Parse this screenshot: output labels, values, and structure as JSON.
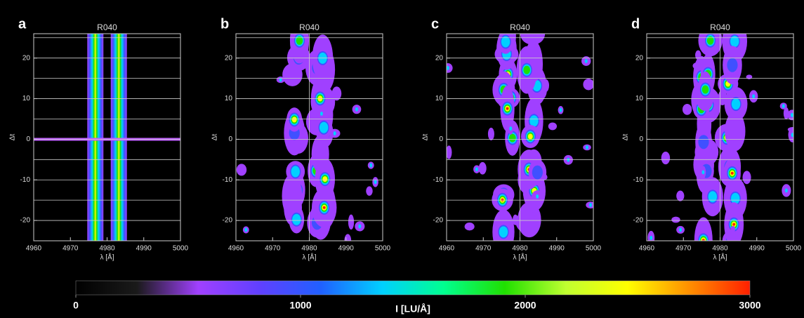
{
  "chart_data": [
    {
      "type": "contour",
      "panel": "a",
      "title": "R040",
      "x_label": "λ [Å]",
      "y_label": "Δt",
      "xlim": [
        4960,
        5000
      ],
      "xticks": [
        4960,
        4970,
        4980,
        4990,
        5000
      ],
      "ylim": [
        -25,
        26
      ],
      "yticks": [
        -20,
        -10,
        0,
        10,
        20
      ],
      "hlines": [
        -20,
        -15,
        -10,
        -5,
        0,
        5,
        10,
        15,
        20,
        25
      ],
      "model": true
    },
    {
      "type": "contour",
      "panel": "b",
      "title": "R040",
      "x_label": "λ [Å]",
      "y_label": "Δt",
      "xlim": [
        4960,
        5000
      ],
      "xticks": [
        4960,
        4970,
        4980,
        4990,
        5000
      ],
      "ylim": [
        -25,
        26
      ],
      "yticks": [
        -20,
        -10,
        0,
        10,
        20
      ],
      "hlines": [
        -20,
        -15,
        -10,
        -5,
        0,
        5,
        10,
        15,
        20,
        25
      ],
      "vline": 4980
    },
    {
      "type": "contour",
      "panel": "c",
      "title": "R040",
      "x_label": "λ [Å]",
      "y_label": "Δt",
      "xlim": [
        4960,
        5000
      ],
      "xticks": [
        4960,
        4970,
        4980,
        4990,
        5000
      ],
      "ylim": [
        -25,
        26
      ],
      "yticks": [
        -20,
        -10,
        0,
        10,
        20
      ],
      "hlines": [
        -20,
        -15,
        -10,
        -5,
        0,
        5,
        10,
        15,
        20,
        25
      ],
      "vline": 4980
    },
    {
      "type": "contour",
      "panel": "d",
      "title": "R040",
      "x_label": "λ [Å]",
      "y_label": "Δt",
      "xlim": [
        4960,
        5000
      ],
      "xticks": [
        4960,
        4970,
        4980,
        4990,
        5000
      ],
      "ylim": [
        -25,
        26
      ],
      "yticks": [
        -20,
        -10,
        0,
        10,
        20
      ],
      "hlines": [
        -20,
        -15,
        -10,
        -5,
        0,
        5,
        10,
        15,
        20,
        25
      ],
      "vline": 4980
    }
  ],
  "colorbar": {
    "label": "I [LU/Å]",
    "lim": [
      0,
      3000
    ],
    "ticks": [
      0,
      1000,
      2000,
      3000
    ],
    "colors": [
      "#000000",
      "#1a1a1a",
      "#a040ff",
      "#6040ff",
      "#2060ff",
      "#00d0ff",
      "#00ff90",
      "#20e000",
      "#c0ff30",
      "#ffff00",
      "#ff9000",
      "#ff2000"
    ]
  }
}
